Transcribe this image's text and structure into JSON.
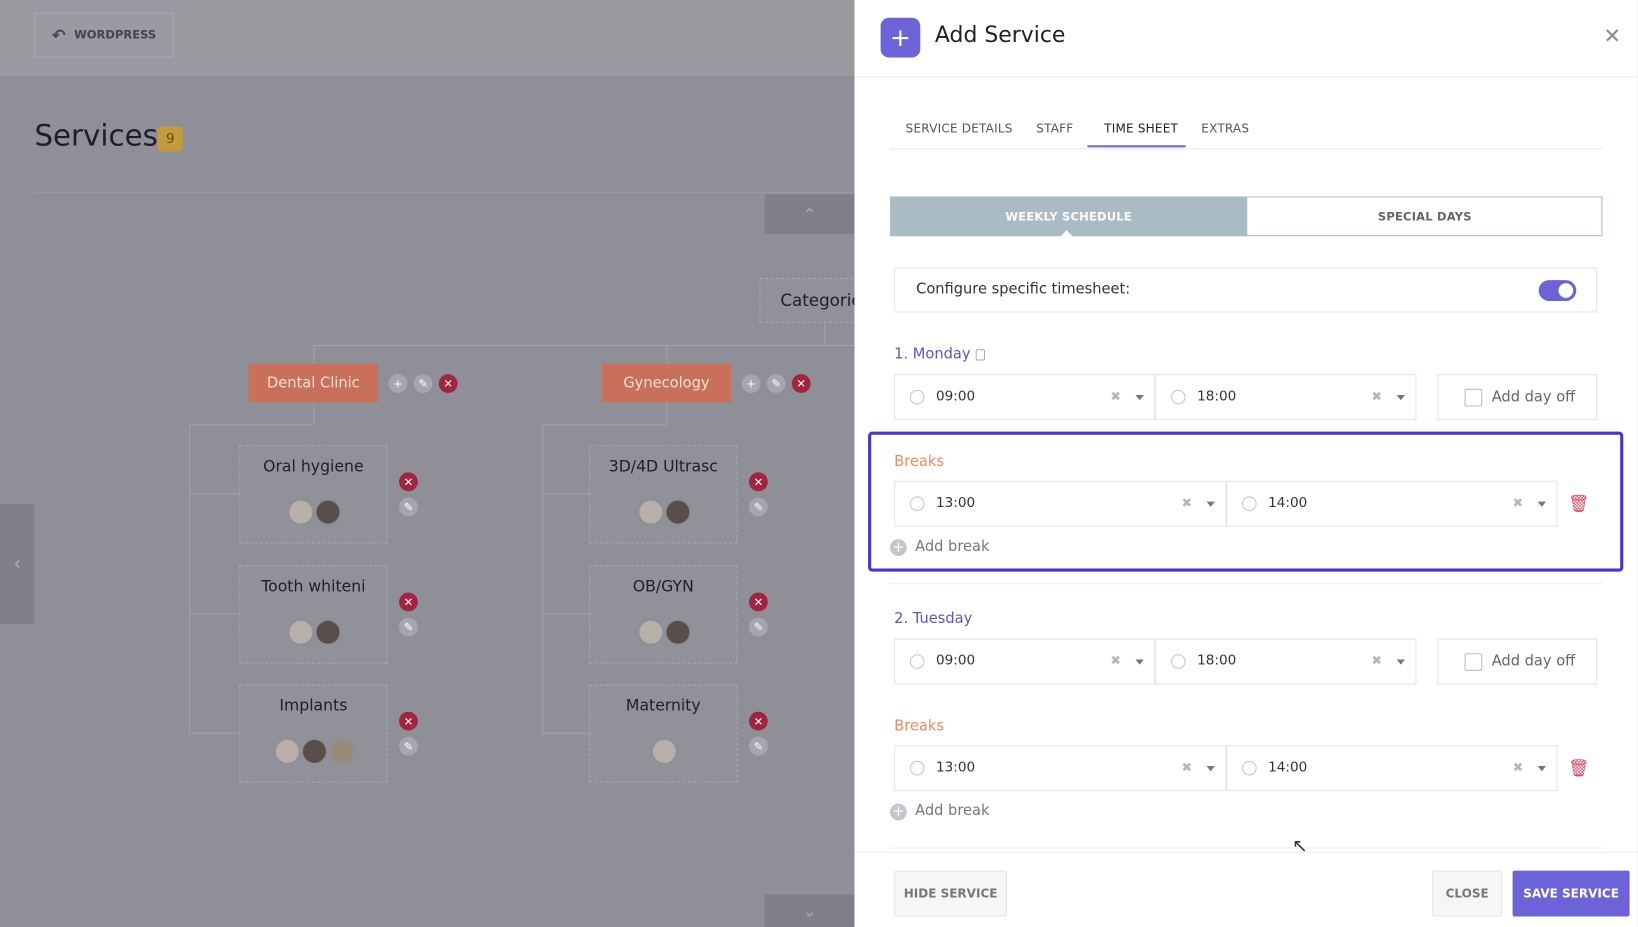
{
  "background": {
    "back_button": "WORDPRESS",
    "title": "Services",
    "count": 9,
    "root": "Categorie",
    "groups": [
      {
        "name": "Dental Clinic",
        "services": [
          "Oral hygiene",
          "Tooth whiteni",
          "Implants"
        ]
      },
      {
        "name": "Gynecology",
        "services": [
          "3D/4D Ultrasc",
          "OB/GYN",
          "Maternity"
        ]
      }
    ]
  },
  "panel": {
    "title": "Add Service",
    "tabs": [
      "SERVICE DETAILS",
      "STAFF",
      "TIME SHEET",
      "EXTRAS"
    ],
    "schedule_tabs": [
      "WEEKLY SCHEDULE",
      "SPECIAL DAYS"
    ],
    "toggle_label": "Configure specific timesheet:",
    "days": [
      {
        "label": "1. Monday",
        "start": "09:00",
        "end": "18:00",
        "day_off": "Add day off",
        "breaks_label": "Breaks",
        "breaks": [
          {
            "start": "13:00",
            "end": "14:00"
          }
        ],
        "add_break": "Add break"
      },
      {
        "label": "2. Tuesday",
        "start": "09:00",
        "end": "18:00",
        "day_off": "Add day off",
        "breaks_label": "Breaks",
        "breaks": [
          {
            "start": "13:00",
            "end": "14:00"
          }
        ],
        "add_break": "Add break"
      }
    ],
    "buttons": {
      "hide": "HIDE SERVICE",
      "close": "CLOSE",
      "save": "SAVE SERVICE"
    }
  }
}
